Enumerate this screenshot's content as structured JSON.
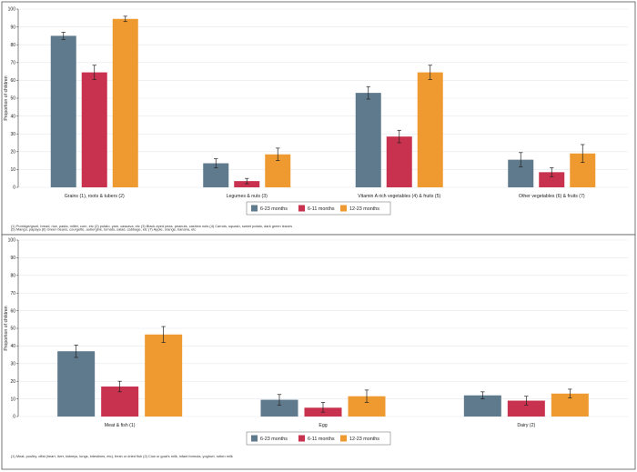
{
  "colors": {
    "series": [
      "#5f7a8c",
      "#c8324e",
      "#ef9a30"
    ],
    "plot_bg": "#ffffff",
    "grid": "#e3e8ec",
    "error_bar": "#222222"
  },
  "chart_data": [
    {
      "type": "bar",
      "ylabel": "Proportion of children",
      "ylim": [
        0,
        100
      ],
      "yticks": [
        0,
        10,
        20,
        30,
        40,
        50,
        60,
        70,
        80,
        90,
        100
      ],
      "grid": true,
      "legend_position": "bottom-center",
      "categories": [
        "Grains (1), roots & tubers (2)",
        "Legumes & nuts (3)",
        "Vitamin A rich vegetables (4) & fruits (5)",
        "Other vegetables (6) & fruits (7)"
      ],
      "series": [
        {
          "name": "6-23 months",
          "values": [
            85,
            13.5,
            53,
            15.5
          ],
          "ci": [
            [
              83,
              87
            ],
            [
              11,
              16
            ],
            [
              49.5,
              56.5
            ],
            [
              11.5,
              19.5
            ]
          ]
        },
        {
          "name": "6-11 months",
          "values": [
            64.5,
            3.5,
            28.5,
            8.5
          ],
          "ci": [
            [
              60.5,
              68.5
            ],
            [
              2,
              5
            ],
            [
              25,
              32
            ],
            [
              6,
              11
            ]
          ]
        },
        {
          "name": "12-23 months",
          "values": [
            94.5,
            18.5,
            64.5,
            19
          ],
          "ci": [
            [
              93,
              96
            ],
            [
              15,
              22
            ],
            [
              60.5,
              68.5
            ],
            [
              14,
              24
            ]
          ]
        }
      ],
      "footnotes": [
        "(1) Porridge/gruel, bread, rice, pasta, millet, corn, etc (2) potato, yam, cassava, etc (3) Black-eyed peas, peanuts, cashew nuts (4) Carrots, squash, sweet potato, dark green leaves",
        "(5) Mango, papaya (6) Green beans, courgette, aubergine, tomato, salad, cabbage, etc (7) Apple, orange, banana, etc"
      ]
    },
    {
      "type": "bar",
      "ylabel": "Proportion of children",
      "ylim": [
        0,
        100
      ],
      "yticks": [
        0,
        10,
        20,
        30,
        40,
        50,
        60,
        70,
        80,
        90,
        100
      ],
      "grid": true,
      "legend_position": "bottom-center",
      "categories": [
        "Meat & fish (1)",
        "Egg",
        "Dairy (2)"
      ],
      "series": [
        {
          "name": "6-23 months",
          "values": [
            37,
            9.5,
            12
          ],
          "ci": [
            [
              33.5,
              40.5
            ],
            [
              6.5,
              12.5
            ],
            [
              10,
              14
            ]
          ]
        },
        {
          "name": "6-11 months",
          "values": [
            17,
            5,
            9
          ],
          "ci": [
            [
              14,
              20
            ],
            [
              2.5,
              8
            ],
            [
              6.5,
              11.5
            ]
          ]
        },
        {
          "name": "12-23 months",
          "values": [
            46.5,
            11.5,
            13
          ],
          "ci": [
            [
              42,
              51
            ],
            [
              8,
              15
            ],
            [
              10.5,
              15.5
            ]
          ]
        }
      ],
      "footnotes": [
        "(1) Meat, poultry, offal (heart, liver, kidneys, lungs, intestines, etc), fresh or dried fish (2) Cow or goat's milk, infant formula, yoghurt, rotten milk"
      ]
    }
  ]
}
